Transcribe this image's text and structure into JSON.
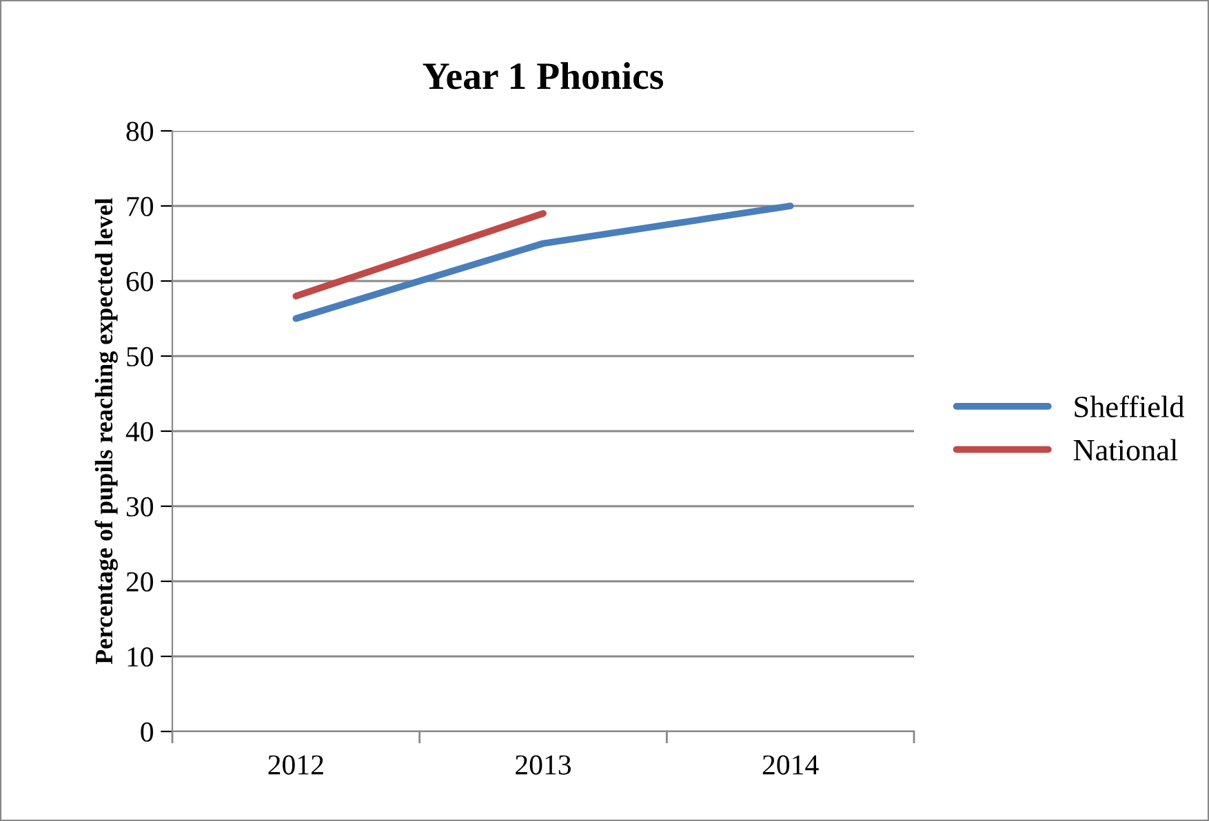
{
  "chart_data": {
    "type": "line",
    "title": "Year 1 Phonics",
    "ylabel": "Percentage of pupils reaching expected level",
    "categories": [
      "2012",
      "2013",
      "2014"
    ],
    "series": [
      {
        "name": "Sheffield",
        "color": "#4a7ebb",
        "values": [
          55,
          65,
          70
        ]
      },
      {
        "name": "National",
        "color": "#be4b48",
        "values": [
          58,
          69,
          null
        ]
      }
    ],
    "ylim": [
      0,
      80
    ],
    "yticks": [
      0,
      10,
      20,
      30,
      40,
      50,
      60,
      70,
      80
    ],
    "grid": "y",
    "legend": "right",
    "marker": "none",
    "line_style": "solid"
  }
}
